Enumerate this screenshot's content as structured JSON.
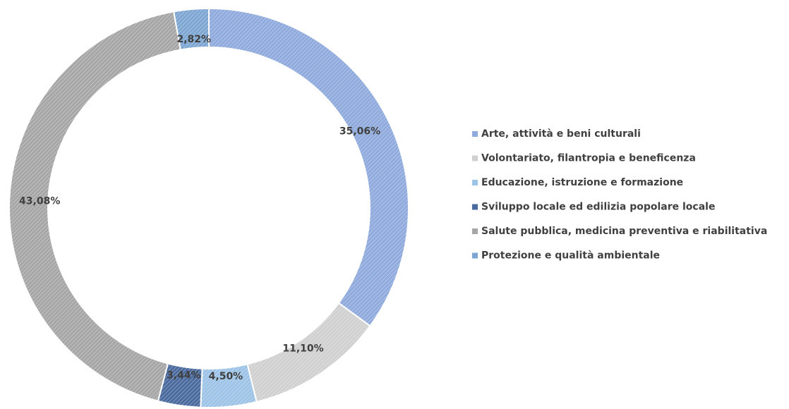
{
  "chart_data": {
    "type": "donut",
    "categories": [
      "Arte, attività e beni culturali",
      "Volontariato, filantropia e beneficenza",
      "Educazione, istruzione e formazione",
      "Sviluppo locale ed edilizia popolare locale",
      "Salute pubblica, medicina preventiva e riabilitativa",
      "Protezione e qualità ambientale"
    ],
    "values": [
      35.06,
      11.1,
      4.5,
      3.44,
      43.08,
      2.82
    ],
    "value_labels": [
      "35,06%",
      "11,10%",
      "4,50%",
      "3,44%",
      "43,08%",
      "2,82%"
    ],
    "colors": [
      "#8faadc",
      "#d0d0d0",
      "#9dc3e6",
      "#4a6a9e",
      "#a6a6a6",
      "#7da6d2"
    ]
  }
}
